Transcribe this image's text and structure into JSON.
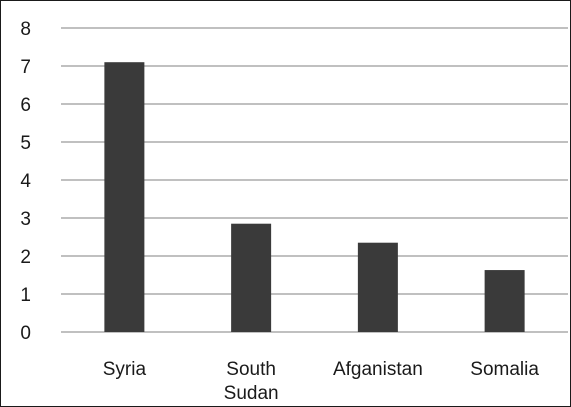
{
  "chart_data": {
    "type": "bar",
    "categories": [
      [
        "Syria"
      ],
      [
        "South",
        "Sudan"
      ],
      [
        "Afganistan"
      ],
      [
        "Somalia"
      ]
    ],
    "values": [
      7.1,
      2.85,
      2.35,
      1.63
    ],
    "title": "",
    "xlabel": "",
    "ylabel": "",
    "ylim": [
      0,
      8
    ],
    "yticks": [
      "0",
      "1",
      "2",
      "3",
      "4",
      "5",
      "6",
      "7",
      "8"
    ],
    "grid": true,
    "legend": "none",
    "colors": {
      "bar": "#3a3a3a",
      "grid": "#9a9a9a",
      "text": "#1a1a1a"
    }
  }
}
